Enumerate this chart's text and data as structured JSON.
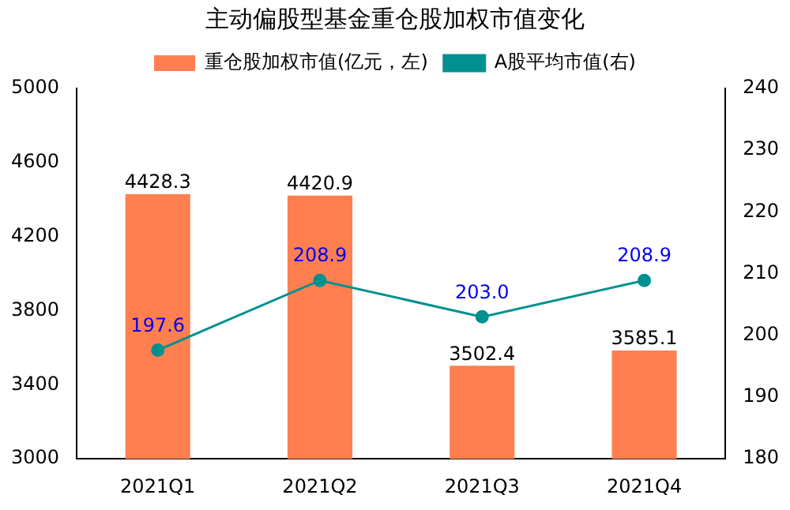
{
  "chart_data": {
    "type": "bar",
    "title": "主动偏股型基金重仓股加权市值变化",
    "categories": [
      "2021Q1",
      "2021Q2",
      "2021Q3",
      "2021Q4"
    ],
    "series": [
      {
        "name": "重仓股加权市值(亿元，左)",
        "color": "#ff7f50",
        "values": [
          4428.3,
          4420.9,
          3502.4,
          3585.1
        ],
        "value_labels": [
          "4428.3",
          "4420.9",
          "3502.4",
          "3585.1"
        ]
      },
      {
        "name": "A股平均市值(右)",
        "type": "line",
        "axis": "y2",
        "color": "#009090",
        "values": [
          197.6,
          208.9,
          203.0,
          208.9
        ],
        "value_labels": [
          "197.6",
          "208.9",
          "203.0",
          "208.9"
        ]
      }
    ],
    "ylim": [
      3000,
      5000
    ],
    "yticks": [
      3000,
      3400,
      3800,
      4200,
      4600,
      5000
    ],
    "y2lim": [
      180,
      240
    ],
    "y2ticks": [
      180,
      190,
      200,
      210,
      220,
      230,
      240
    ],
    "legend": "top",
    "marker": "circle",
    "line_style": "solid"
  }
}
